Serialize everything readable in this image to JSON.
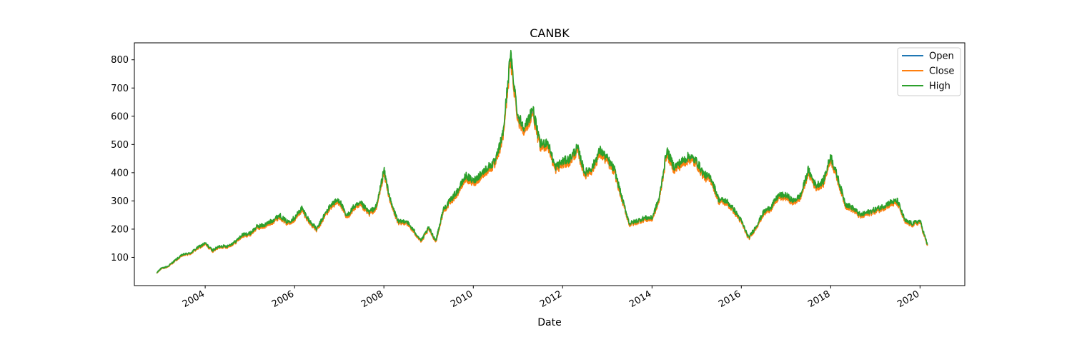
{
  "chart_data": {
    "type": "line",
    "title": "CANBK",
    "xlabel": "Date",
    "ylabel": "",
    "x_axis": "date",
    "xlim": [
      "2002-06-01",
      "2021-01-01"
    ],
    "ylim": [
      0,
      860
    ],
    "x_ticks": [
      "2004",
      "2006",
      "2008",
      "2010",
      "2012",
      "2014",
      "2016",
      "2018",
      "2020"
    ],
    "y_ticks": [
      100,
      200,
      300,
      400,
      500,
      600,
      700,
      800
    ],
    "grid": false,
    "legend_position": "top-right",
    "colors": {
      "Open": "#1f77b4",
      "Close": "#ff7f0e",
      "High": "#2ca02c"
    },
    "series": [
      {
        "name": "Open"
      },
      {
        "name": "Close"
      },
      {
        "name": "High"
      }
    ],
    "dates": [
      "2002-12-01",
      "2003-01-01",
      "2003-03-01",
      "2003-05-01",
      "2003-07-01",
      "2003-09-01",
      "2003-11-01",
      "2004-01-01",
      "2004-03-01",
      "2004-05-01",
      "2004-07-01",
      "2004-09-01",
      "2004-11-01",
      "2005-01-01",
      "2005-03-01",
      "2005-05-01",
      "2005-07-01",
      "2005-09-01",
      "2005-11-01",
      "2006-01-01",
      "2006-03-01",
      "2006-05-01",
      "2006-07-01",
      "2006-09-01",
      "2006-11-01",
      "2007-01-01",
      "2007-03-01",
      "2007-05-01",
      "2007-07-01",
      "2007-09-01",
      "2007-11-01",
      "2008-01-01",
      "2008-03-01",
      "2008-05-01",
      "2008-07-01",
      "2008-09-01",
      "2008-11-01",
      "2009-01-01",
      "2009-03-01",
      "2009-05-01",
      "2009-07-01",
      "2009-09-01",
      "2009-11-01",
      "2010-01-01",
      "2010-03-01",
      "2010-05-01",
      "2010-07-01",
      "2010-09-01",
      "2010-11-01",
      "2011-01-01",
      "2011-03-01",
      "2011-05-01",
      "2011-07-01",
      "2011-09-01",
      "2011-11-01",
      "2012-01-01",
      "2012-03-01",
      "2012-05-01",
      "2012-07-01",
      "2012-09-01",
      "2012-11-01",
      "2013-01-01",
      "2013-03-01",
      "2013-05-01",
      "2013-07-01",
      "2013-09-01",
      "2013-11-01",
      "2014-01-01",
      "2014-03-01",
      "2014-05-01",
      "2014-07-01",
      "2014-09-01",
      "2014-11-01",
      "2015-01-01",
      "2015-03-01",
      "2015-05-01",
      "2015-07-01",
      "2015-09-01",
      "2015-11-01",
      "2016-01-01",
      "2016-03-01",
      "2016-05-01",
      "2016-07-01",
      "2016-09-01",
      "2016-11-01",
      "2017-01-01",
      "2017-03-01",
      "2017-05-01",
      "2017-07-01",
      "2017-09-01",
      "2017-11-01",
      "2018-01-01",
      "2018-03-01",
      "2018-05-01",
      "2018-07-01",
      "2018-09-01",
      "2018-11-01",
      "2019-01-01",
      "2019-03-01",
      "2019-05-01",
      "2019-07-01",
      "2019-09-01",
      "2019-11-01",
      "2020-01-01",
      "2020-03-01"
    ],
    "high": [
      45,
      60,
      68,
      90,
      110,
      115,
      135,
      150,
      125,
      140,
      140,
      155,
      180,
      185,
      210,
      215,
      230,
      250,
      225,
      240,
      275,
      230,
      200,
      250,
      290,
      305,
      245,
      280,
      290,
      260,
      280,
      410,
      290,
      225,
      230,
      195,
      160,
      205,
      160,
      270,
      305,
      340,
      390,
      370,
      395,
      420,
      440,
      540,
      820,
      600,
      560,
      630,
      500,
      510,
      420,
      440,
      450,
      490,
      400,
      420,
      480,
      450,
      410,
      310,
      220,
      230,
      240,
      240,
      310,
      480,
      420,
      440,
      460,
      440,
      395,
      380,
      305,
      300,
      270,
      230,
      170,
      210,
      260,
      280,
      320,
      320,
      300,
      320,
      410,
      355,
      370,
      460,
      380,
      290,
      275,
      250,
      260,
      270,
      280,
      295,
      300,
      230,
      220,
      230,
      145
    ]
  }
}
